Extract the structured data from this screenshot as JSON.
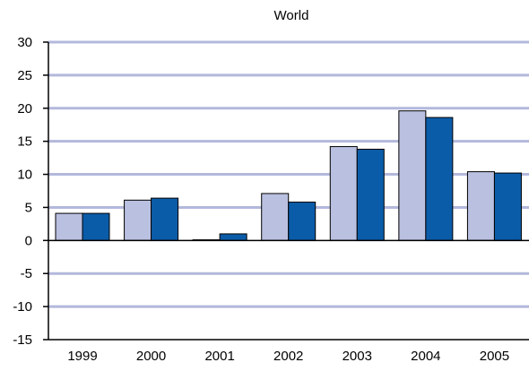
{
  "chart_data": {
    "type": "bar",
    "title": "World",
    "xlabel": "",
    "ylabel": "",
    "categories": [
      "1999",
      "2000",
      "2001",
      "2002",
      "2003",
      "2004",
      "2005"
    ],
    "series": [
      {
        "values": [
          4.1,
          6.1,
          0.1,
          7.1,
          14.2,
          19.6,
          10.4
        ]
      },
      {
        "values": [
          4.1,
          6.4,
          1.0,
          5.8,
          13.8,
          18.6,
          10.2
        ]
      }
    ],
    "ylim": [
      -15,
      30
    ],
    "yticks": [
      "30",
      "25",
      "20",
      "15",
      "10",
      "5",
      "0",
      "-5",
      "-10",
      "-15"
    ],
    "grid": true,
    "colors": {
      "series": [
        "#bac0e0",
        "#0b5ca8"
      ],
      "grid": "#b3b8dc",
      "axis": "#000000",
      "bar_stroke": "#000000"
    }
  }
}
